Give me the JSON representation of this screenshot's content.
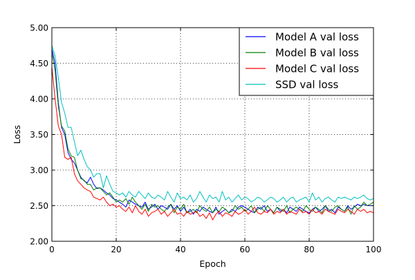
{
  "chart_data": {
    "type": "line",
    "title": "",
    "xlabel": "Epoch",
    "ylabel": "Loss",
    "xlim": [
      0,
      100
    ],
    "ylim": [
      2.0,
      5.0
    ],
    "xticks": [
      0,
      20,
      40,
      60,
      80,
      100
    ],
    "xtick_labels": [
      "0",
      "20",
      "40",
      "60",
      "80",
      "100"
    ],
    "yticks": [
      2.0,
      2.5,
      3.0,
      3.5,
      4.0,
      4.5,
      5.0
    ],
    "ytick_labels": [
      "2.00",
      "2.50",
      "3.00",
      "3.50",
      "4.00",
      "4.50",
      "5.00"
    ],
    "grid": true,
    "grid_style": "dotted",
    "legend_position": "top-right",
    "x": [
      0,
      1,
      2,
      3,
      4,
      5,
      6,
      7,
      8,
      9,
      10,
      11,
      12,
      13,
      14,
      15,
      16,
      17,
      18,
      19,
      20,
      21,
      22,
      23,
      24,
      25,
      26,
      27,
      28,
      29,
      30,
      31,
      32,
      33,
      34,
      35,
      36,
      37,
      38,
      39,
      40,
      41,
      42,
      43,
      44,
      45,
      46,
      47,
      48,
      49,
      50,
      51,
      52,
      53,
      54,
      55,
      56,
      57,
      58,
      59,
      60,
      61,
      62,
      63,
      64,
      65,
      66,
      67,
      68,
      69,
      70,
      71,
      72,
      73,
      74,
      75,
      76,
      77,
      78,
      79,
      80,
      81,
      82,
      83,
      84,
      85,
      86,
      87,
      88,
      89,
      90,
      91,
      92,
      93,
      94,
      95,
      96,
      97,
      98,
      99,
      100
    ],
    "series": [
      {
        "name": "Model A val loss",
        "color": "#0000ff",
        "values": [
          4.7,
          4.5,
          3.95,
          3.6,
          3.5,
          3.25,
          3.15,
          3.1,
          3.0,
          2.9,
          2.85,
          2.82,
          2.9,
          2.8,
          2.74,
          2.75,
          2.72,
          2.68,
          2.65,
          2.6,
          2.58,
          2.55,
          2.52,
          2.48,
          2.58,
          2.55,
          2.52,
          2.5,
          2.48,
          2.55,
          2.45,
          2.48,
          2.52,
          2.45,
          2.5,
          2.48,
          2.45,
          2.52,
          2.45,
          2.5,
          2.42,
          2.48,
          2.4,
          2.45,
          2.38,
          2.45,
          2.42,
          2.48,
          2.45,
          2.42,
          2.4,
          2.48,
          2.38,
          2.42,
          2.45,
          2.4,
          2.45,
          2.42,
          2.48,
          2.5,
          2.48,
          2.45,
          2.42,
          2.4,
          2.48,
          2.45,
          2.5,
          2.42,
          2.45,
          2.4,
          2.48,
          2.42,
          2.45,
          2.4,
          2.48,
          2.45,
          2.42,
          2.48,
          2.45,
          2.42,
          2.4,
          2.45,
          2.48,
          2.42,
          2.45,
          2.5,
          2.42,
          2.45,
          2.4,
          2.48,
          2.45,
          2.42,
          2.5,
          2.45,
          2.48,
          2.52,
          2.5,
          2.52,
          2.5,
          2.5,
          2.5
        ]
      },
      {
        "name": "Model B val loss",
        "color": "#008000",
        "values": [
          4.65,
          4.4,
          3.9,
          3.62,
          3.55,
          3.3,
          3.2,
          3.18,
          3.0,
          2.88,
          2.86,
          2.8,
          2.8,
          2.72,
          2.75,
          2.75,
          2.7,
          2.65,
          2.68,
          2.62,
          2.55,
          2.58,
          2.55,
          2.6,
          2.52,
          2.62,
          2.55,
          2.5,
          2.45,
          2.52,
          2.42,
          2.52,
          2.48,
          2.5,
          2.45,
          2.42,
          2.48,
          2.52,
          2.4,
          2.48,
          2.45,
          2.52,
          2.4,
          2.42,
          2.45,
          2.4,
          2.5,
          2.45,
          2.42,
          2.48,
          2.4,
          2.45,
          2.42,
          2.48,
          2.45,
          2.4,
          2.42,
          2.5,
          2.45,
          2.48,
          2.42,
          2.45,
          2.5,
          2.4,
          2.45,
          2.48,
          2.42,
          2.5,
          2.45,
          2.4,
          2.48,
          2.45,
          2.42,
          2.5,
          2.4,
          2.45,
          2.48,
          2.45,
          2.42,
          2.5,
          2.45,
          2.42,
          2.48,
          2.45,
          2.4,
          2.5,
          2.45,
          2.42,
          2.48,
          2.5,
          2.45,
          2.42,
          2.48,
          2.38,
          2.5,
          2.45,
          2.48,
          2.55,
          2.5,
          2.52,
          2.55
        ]
      },
      {
        "name": "Model C val loss",
        "color": "#ff0000",
        "values": [
          4.45,
          4.0,
          3.62,
          3.5,
          3.18,
          3.15,
          3.18,
          2.95,
          2.85,
          2.8,
          2.75,
          2.72,
          2.7,
          2.62,
          2.6,
          2.58,
          2.62,
          2.55,
          2.5,
          2.52,
          2.48,
          2.5,
          2.45,
          2.42,
          2.48,
          2.4,
          2.5,
          2.42,
          2.38,
          2.45,
          2.35,
          2.4,
          2.42,
          2.45,
          2.38,
          2.42,
          2.35,
          2.4,
          2.45,
          2.38,
          2.4,
          2.35,
          2.42,
          2.38,
          2.4,
          2.42,
          2.35,
          2.38,
          2.32,
          2.4,
          2.3,
          2.38,
          2.42,
          2.35,
          2.4,
          2.38,
          2.35,
          2.42,
          2.38,
          2.4,
          2.45,
          2.38,
          2.42,
          2.48,
          2.4,
          2.38,
          2.42,
          2.4,
          2.45,
          2.38,
          2.42,
          2.4,
          2.45,
          2.38,
          2.42,
          2.4,
          2.38,
          2.45,
          2.4,
          2.42,
          2.38,
          2.45,
          2.4,
          2.42,
          2.38,
          2.45,
          2.42,
          2.4,
          2.38,
          2.45,
          2.42,
          2.4,
          2.45,
          2.42,
          2.38,
          2.45,
          2.42,
          2.45,
          2.4,
          2.42,
          2.4
        ]
      },
      {
        "name": "SSD val loss",
        "color": "#00bfbf",
        "values": [
          4.75,
          4.6,
          4.3,
          3.95,
          3.8,
          3.6,
          3.6,
          3.4,
          3.2,
          3.28,
          3.15,
          3.05,
          3.0,
          2.9,
          2.95,
          2.95,
          2.75,
          2.92,
          2.8,
          2.7,
          2.68,
          2.65,
          2.68,
          2.62,
          2.7,
          2.65,
          2.62,
          2.7,
          2.65,
          2.6,
          2.68,
          2.62,
          2.6,
          2.65,
          2.62,
          2.58,
          2.7,
          2.62,
          2.55,
          2.68,
          2.6,
          2.62,
          2.58,
          2.65,
          2.55,
          2.6,
          2.7,
          2.62,
          2.55,
          2.65,
          2.6,
          2.62,
          2.55,
          2.7,
          2.58,
          2.62,
          2.55,
          2.6,
          2.65,
          2.58,
          2.62,
          2.6,
          2.55,
          2.58,
          2.62,
          2.6,
          2.55,
          2.58,
          2.62,
          2.6,
          2.55,
          2.58,
          2.62,
          2.55,
          2.6,
          2.62,
          2.55,
          2.58,
          2.6,
          2.62,
          2.55,
          2.68,
          2.58,
          2.62,
          2.55,
          2.6,
          2.62,
          2.58,
          2.55,
          2.62,
          2.6,
          2.62,
          2.6,
          2.58,
          2.62,
          2.6,
          2.62,
          2.65,
          2.6,
          2.58,
          2.6
        ]
      }
    ]
  }
}
